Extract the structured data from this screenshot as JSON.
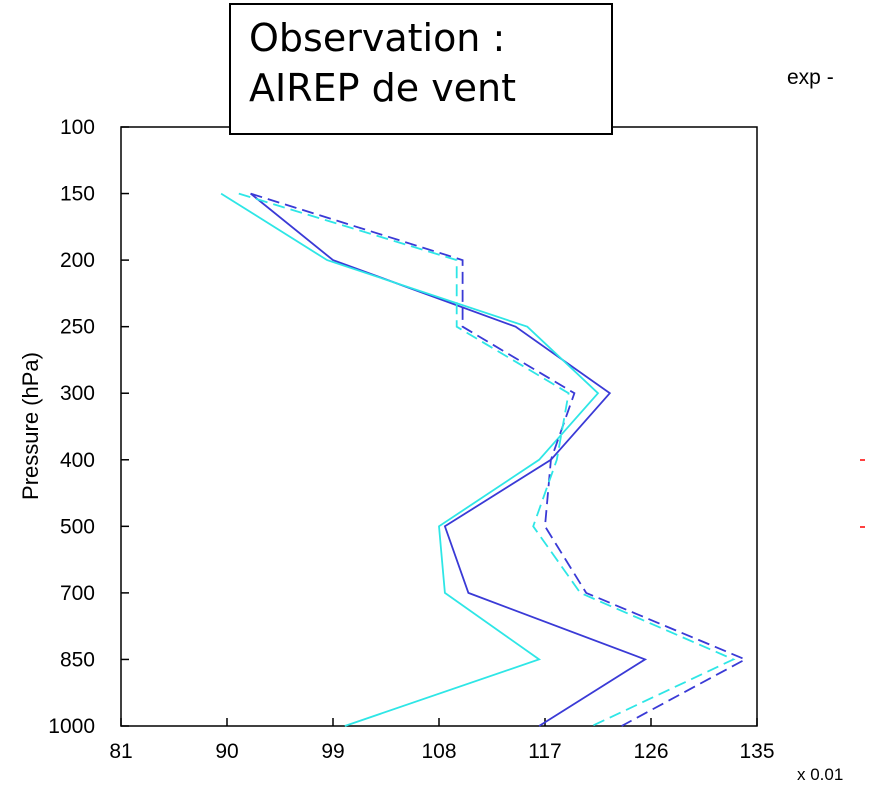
{
  "chart_data": {
    "type": "line",
    "ylabel": "Pressure (hPa)",
    "x_multiplier_label": "x 0.01",
    "header_text": "exp -",
    "xlim": [
      81,
      135
    ],
    "x_ticks": [
      81,
      90,
      99,
      108,
      117,
      126,
      135
    ],
    "y_ticks": [
      100,
      150,
      200,
      250,
      300,
      400,
      500,
      700,
      850,
      1000
    ],
    "y_axis_inverted": true,
    "grid": false,
    "series": [
      {
        "color": "#3a3ad6",
        "dash": "solid",
        "points": [
          {
            "p": 150,
            "x": 92.0
          },
          {
            "p": 200,
            "x": 99.0
          },
          {
            "p": 250,
            "x": 114.5
          },
          {
            "p": 300,
            "x": 122.5
          },
          {
            "p": 400,
            "x": 117.5
          },
          {
            "p": 500,
            "x": 108.5
          },
          {
            "p": 700,
            "x": 110.5
          },
          {
            "p": 850,
            "x": 125.5
          },
          {
            "p": 1000,
            "x": 116.5
          }
        ]
      },
      {
        "color": "#2ee6e6",
        "dash": "solid",
        "points": [
          {
            "p": 150,
            "x": 89.5
          },
          {
            "p": 200,
            "x": 98.5
          },
          {
            "p": 250,
            "x": 115.5
          },
          {
            "p": 300,
            "x": 121.5
          },
          {
            "p": 400,
            "x": 116.5
          },
          {
            "p": 500,
            "x": 108.0
          },
          {
            "p": 700,
            "x": 108.5
          },
          {
            "p": 850,
            "x": 116.5
          },
          {
            "p": 1000,
            "x": 100.0
          }
        ]
      },
      {
        "color": "#3a3ad6",
        "dash": "dashed",
        "points": [
          {
            "p": 150,
            "x": 92.0
          },
          {
            "p": 200,
            "x": 110.0
          },
          {
            "p": 250,
            "x": 110.0
          },
          {
            "p": 300,
            "x": 119.5
          },
          {
            "p": 400,
            "x": 117.5
          },
          {
            "p": 500,
            "x": 117.0
          },
          {
            "p": 700,
            "x": 120.5
          },
          {
            "p": 850,
            "x": 134.0
          },
          {
            "p": 1000,
            "x": 123.5
          }
        ]
      },
      {
        "color": "#2ee6e6",
        "dash": "dashed",
        "points": [
          {
            "p": 150,
            "x": 91.0
          },
          {
            "p": 200,
            "x": 109.5
          },
          {
            "p": 250,
            "x": 109.5
          },
          {
            "p": 300,
            "x": 119.0
          },
          {
            "p": 400,
            "x": 118.0
          },
          {
            "p": 500,
            "x": 116.0
          },
          {
            "p": 700,
            "x": 120.0
          },
          {
            "p": 850,
            "x": 133.0
          },
          {
            "p": 1000,
            "x": 121.0
          }
        ]
      }
    ],
    "annotation": {
      "line1": "Observation :",
      "line2": "AIREP de vent"
    },
    "legend_marker_colors": [
      "#ff0000",
      "#ff0000"
    ]
  }
}
